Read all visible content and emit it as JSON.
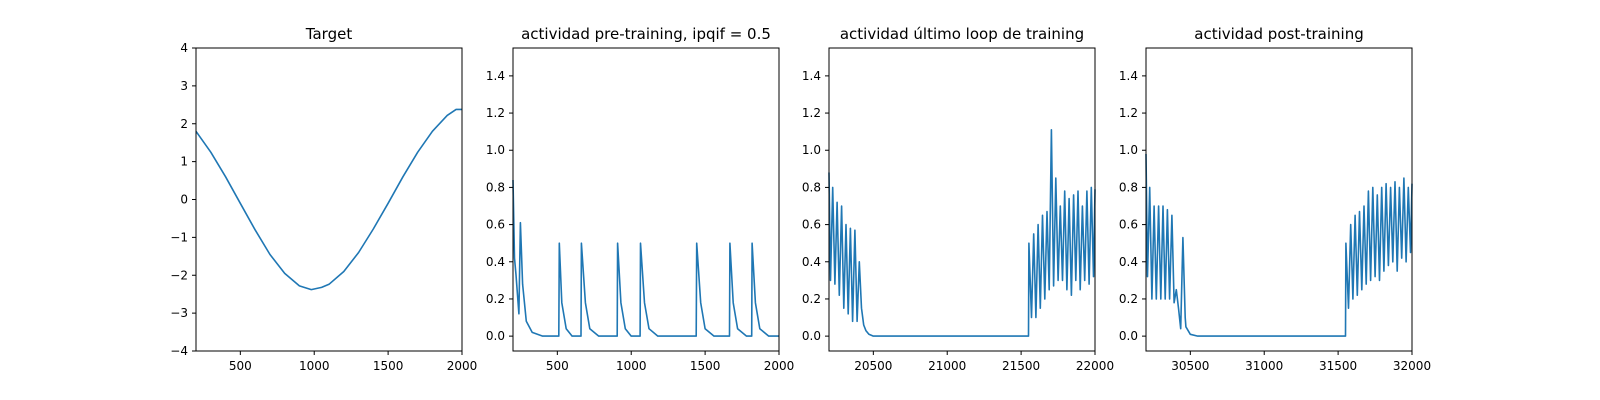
{
  "colors": {
    "series": "#1f77b4",
    "axis": "#000000",
    "background": "#ffffff"
  },
  "chart_data": [
    {
      "type": "line",
      "title": "Target",
      "xlabel": "",
      "ylabel": "",
      "xlim": [
        200,
        2000
      ],
      "ylim": [
        -4,
        4
      ],
      "xticks": [
        500,
        1000,
        1500,
        2000
      ],
      "yticks": [
        -4,
        -3,
        -2,
        -1,
        0,
        1,
        2,
        3,
        4
      ],
      "grid": false,
      "series": [
        {
          "x": [
            200,
            300,
            400,
            500,
            600,
            700,
            800,
            900,
            980,
            1050,
            1100,
            1200,
            1300,
            1400,
            1500,
            1600,
            1700,
            1800,
            1900,
            1960,
            2000
          ],
          "y": [
            1.8,
            1.25,
            0.6,
            -0.1,
            -0.8,
            -1.45,
            -1.95,
            -2.28,
            -2.38,
            -2.32,
            -2.24,
            -1.9,
            -1.4,
            -0.78,
            -0.1,
            0.6,
            1.25,
            1.8,
            2.22,
            2.38,
            2.38
          ]
        }
      ]
    },
    {
      "type": "line",
      "title": "actividad pre-training, ipqif = 0.5",
      "xlabel": "",
      "ylabel": "",
      "xlim": [
        200,
        2000
      ],
      "ylim": [
        -0.08,
        1.55
      ],
      "xticks": [
        500,
        1000,
        1500,
        2000
      ],
      "yticks": [
        0.0,
        0.2,
        0.4,
        0.6,
        0.8,
        1.0,
        1.2,
        1.4
      ],
      "grid": false,
      "series": [
        {
          "x": [
            200,
            210,
            220,
            240,
            250,
            265,
            290,
            330,
            400,
            510,
            513,
            530,
            560,
            600,
            660,
            663,
            690,
            720,
            780,
            905,
            908,
            930,
            960,
            1000,
            1060,
            1063,
            1090,
            1120,
            1180,
            1440,
            1443,
            1470,
            1500,
            1560,
            1665,
            1668,
            1690,
            1720,
            1780,
            1815,
            1818,
            1840,
            1870,
            1930,
            2000
          ],
          "y": [
            0.84,
            0.42,
            0.33,
            0.12,
            0.61,
            0.28,
            0.08,
            0.02,
            0.0,
            0.0,
            0.5,
            0.18,
            0.04,
            0.0,
            0.0,
            0.5,
            0.18,
            0.04,
            0.0,
            0.0,
            0.5,
            0.18,
            0.04,
            0.0,
            0.0,
            0.5,
            0.18,
            0.04,
            0.0,
            0.0,
            0.5,
            0.18,
            0.04,
            0.0,
            0.0,
            0.5,
            0.18,
            0.04,
            0.0,
            0.0,
            0.5,
            0.18,
            0.04,
            0.0,
            0.0
          ]
        }
      ]
    },
    {
      "type": "line",
      "title": "actividad último loop de training",
      "xlabel": "",
      "ylabel": "",
      "xlim": [
        20200,
        22000
      ],
      "ylim": [
        -0.08,
        1.55
      ],
      "xticks": [
        20500,
        21000,
        21500,
        22000
      ],
      "yticks": [
        0.0,
        0.2,
        0.4,
        0.6,
        0.8,
        1.0,
        1.2,
        1.4
      ],
      "grid": false,
      "series": [
        {
          "x": [
            20200,
            20210,
            20225,
            20240,
            20255,
            20270,
            20285,
            20300,
            20315,
            20330,
            20345,
            20360,
            20375,
            20390,
            20405,
            20420,
            20435,
            20450,
            20470,
            20500,
            20550,
            20600,
            20800,
            21000,
            21200,
            21400,
            21550,
            21553,
            21570,
            21585,
            21600,
            21615,
            21630,
            21645,
            21660,
            21675,
            21690,
            21705,
            21720,
            21735,
            21750,
            21765,
            21780,
            21795,
            21810,
            21825,
            21840,
            21855,
            21870,
            21885,
            21900,
            21915,
            21930,
            21945,
            21960,
            21975,
            21990,
            22000
          ],
          "y": [
            0.88,
            0.3,
            0.8,
            0.28,
            0.72,
            0.22,
            0.7,
            0.15,
            0.6,
            0.12,
            0.58,
            0.08,
            0.57,
            0.08,
            0.4,
            0.15,
            0.06,
            0.03,
            0.01,
            0.0,
            0.0,
            0.0,
            0.0,
            0.0,
            0.0,
            0.0,
            0.0,
            0.5,
            0.1,
            0.55,
            0.1,
            0.6,
            0.15,
            0.65,
            0.2,
            0.67,
            0.25,
            1.11,
            0.27,
            0.85,
            0.3,
            0.7,
            0.3,
            0.78,
            0.25,
            0.74,
            0.22,
            0.76,
            0.3,
            0.78,
            0.25,
            0.7,
            0.3,
            0.78,
            0.28,
            0.8,
            0.32,
            0.79
          ]
        }
      ]
    },
    {
      "type": "line",
      "title": "actividad post-training",
      "xlabel": "",
      "ylabel": "",
      "xlim": [
        30200,
        32000
      ],
      "ylim": [
        -0.08,
        1.55
      ],
      "xticks": [
        30500,
        31000,
        31500,
        32000
      ],
      "yticks": [
        0.0,
        0.2,
        0.4,
        0.6,
        0.8,
        1.0,
        1.2,
        1.4
      ],
      "grid": false,
      "series": [
        {
          "x": [
            30200,
            30210,
            30225,
            30240,
            30255,
            30270,
            30285,
            30300,
            30315,
            30330,
            30345,
            30360,
            30375,
            30390,
            30405,
            30420,
            30435,
            30450,
            30465,
            30470,
            30500,
            30550,
            30600,
            30800,
            31000,
            31200,
            31400,
            31550,
            31553,
            31570,
            31585,
            31600,
            31615,
            31630,
            31645,
            31660,
            31675,
            31690,
            31705,
            31720,
            31735,
            31750,
            31765,
            31780,
            31795,
            31810,
            31825,
            31840,
            31855,
            31870,
            31885,
            31900,
            31915,
            31930,
            31945,
            31960,
            31975,
            31990,
            32000
          ],
          "y": [
            0.98,
            0.32,
            0.8,
            0.2,
            0.7,
            0.2,
            0.7,
            0.2,
            0.7,
            0.2,
            0.68,
            0.2,
            0.65,
            0.18,
            0.25,
            0.15,
            0.04,
            0.53,
            0.1,
            0.05,
            0.01,
            0.0,
            0.0,
            0.0,
            0.0,
            0.0,
            0.0,
            0.0,
            0.5,
            0.15,
            0.6,
            0.2,
            0.65,
            0.22,
            0.67,
            0.25,
            0.7,
            0.28,
            0.78,
            0.3,
            0.8,
            0.32,
            0.76,
            0.3,
            0.8,
            0.35,
            0.82,
            0.38,
            0.8,
            0.4,
            0.83,
            0.35,
            0.8,
            0.42,
            0.85,
            0.4,
            0.8,
            0.45,
            0.82
          ]
        }
      ]
    }
  ]
}
